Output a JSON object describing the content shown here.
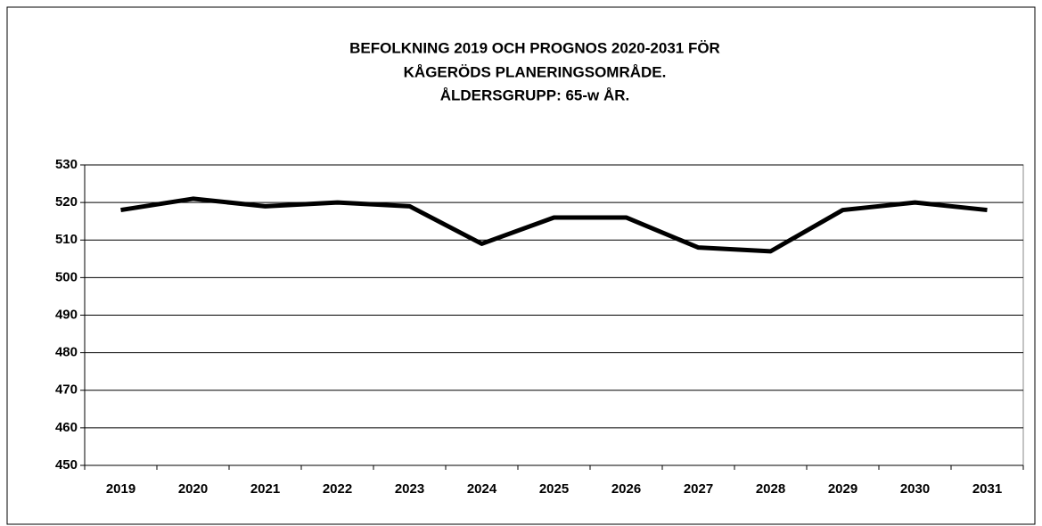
{
  "chart_data": {
    "type": "line",
    "title": [
      "BEFOLKNING 2019 OCH PROGNOS 2020-2031 FÖR",
      "KÅGERÖDS PLANERINGSOMRÅDE.",
      "ÅLDERSGRUPP: 65-w ÅR."
    ],
    "categories": [
      "2019",
      "2020",
      "2021",
      "2022",
      "2023",
      "2024",
      "2025",
      "2026",
      "2027",
      "2028",
      "2029",
      "2030",
      "2031"
    ],
    "series": [
      {
        "color": "#000000",
        "values": [
          518,
          521,
          519,
          520,
          519,
          509,
          516,
          516,
          508,
          507,
          518,
          520,
          518
        ]
      }
    ],
    "ylim": [
      450,
      530
    ],
    "yticks": [
      450,
      460,
      470,
      480,
      490,
      500,
      510,
      520,
      530
    ],
    "grid": true
  }
}
